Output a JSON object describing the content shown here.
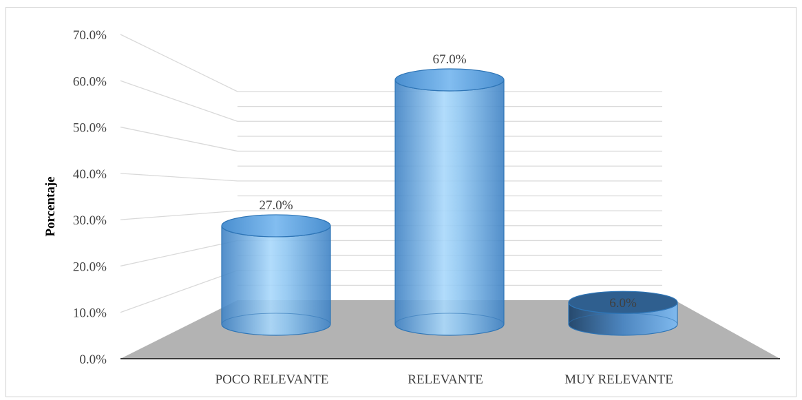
{
  "chart_data": {
    "type": "bar",
    "style": "3d-cylinder",
    "categories": [
      "POCO RELEVANTE",
      "RELEVANTE",
      "MUY RELEVANTE"
    ],
    "values": [
      27.0,
      67.0,
      6.0
    ],
    "data_labels": [
      "27.0%",
      "67.0%",
      "6.0%"
    ],
    "xlabel": "",
    "ylabel": "Porcentaje",
    "ylim": [
      0,
      70
    ],
    "ytick_labels": [
      "0.0%",
      "10.0%",
      "20.0%",
      "30.0%",
      "40.0%",
      "50.0%",
      "60.0%",
      "70.0%"
    ],
    "grid": true,
    "legend": "none",
    "colors": {
      "bar": "#5b9bd5",
      "bar_light": "#a9d4f5",
      "floor": "#b3b3b3",
      "grid": "#d9d9d9",
      "text": "#404040"
    }
  }
}
